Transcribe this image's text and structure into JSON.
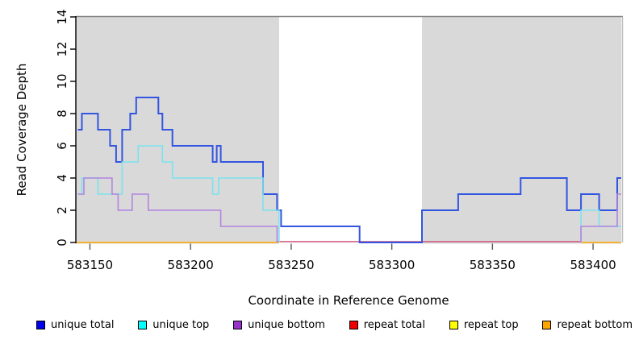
{
  "chart_data": {
    "type": "line",
    "subtype": "step-coverage",
    "xlabel": "Coordinate in Reference Genome",
    "ylabel": "Read Coverage Depth",
    "xlim": [
      583143,
      583414
    ],
    "ylim": [
      0,
      14
    ],
    "x_ticks": [
      583150,
      583200,
      583250,
      583300,
      583350,
      583400
    ],
    "y_ticks": [
      0,
      2,
      4,
      6,
      8,
      10,
      12,
      14
    ],
    "grid": false,
    "legend_position": "bottom",
    "panel_background_bands": [
      {
        "name": "shaded-region-left",
        "x0": 583143,
        "x1": 583244,
        "color": "#d9d9d9"
      },
      {
        "name": "shaded-region-right",
        "x0": 583315,
        "x1": 583414,
        "color": "#d9d9d9"
      }
    ],
    "series": [
      {
        "name": "unique total",
        "color": "#3355e0",
        "width": 2,
        "steps": [
          [
            583144,
            7
          ],
          [
            583146,
            8
          ],
          [
            583154,
            7
          ],
          [
            583160,
            6
          ],
          [
            583163,
            5
          ],
          [
            583166,
            7
          ],
          [
            583170,
            8
          ],
          [
            583173,
            9
          ],
          [
            583184,
            8
          ],
          [
            583186,
            7
          ],
          [
            583191,
            6
          ],
          [
            583211,
            5
          ],
          [
            583213,
            6
          ],
          [
            583215,
            5
          ],
          [
            583236,
            3
          ],
          [
            583243,
            2
          ],
          [
            583245,
            1
          ],
          [
            583284,
            0
          ],
          [
            583315,
            2
          ],
          [
            583333,
            3
          ],
          [
            583364,
            4
          ],
          [
            583387,
            2
          ],
          [
            583394,
            3
          ],
          [
            583403,
            2
          ],
          [
            583412,
            4
          ]
        ],
        "end": 583414
      },
      {
        "name": "unique top (left block)",
        "color": "#7be2ee",
        "width": 1.6,
        "steps": [
          [
            583144,
            3
          ],
          [
            583146,
            4
          ],
          [
            583154,
            3
          ],
          [
            583166,
            5
          ],
          [
            583174,
            6
          ],
          [
            583186,
            5
          ],
          [
            583191,
            4
          ],
          [
            583211,
            3
          ],
          [
            583214,
            4
          ],
          [
            583236,
            2
          ],
          [
            583244,
            0
          ]
        ],
        "end": 583244
      },
      {
        "name": "unique top (right block)",
        "color": "#7be2ee",
        "width": 1.6,
        "steps": [
          [
            583394,
            0
          ],
          [
            583394,
            2
          ],
          [
            583403,
            1
          ]
        ],
        "end": 583414
      },
      {
        "name": "unique bottom (left block)",
        "color": "#b384e0",
        "width": 1.6,
        "steps": [
          [
            583144,
            3
          ],
          [
            583147,
            4
          ],
          [
            583161,
            3
          ],
          [
            583164,
            2
          ],
          [
            583171,
            3
          ],
          [
            583179,
            2
          ],
          [
            583215,
            1
          ],
          [
            583243,
            0
          ]
        ],
        "end": 583243
      },
      {
        "name": "unique bottom (right block)",
        "color": "#b384e0",
        "width": 1.6,
        "steps": [
          [
            583394,
            0
          ],
          [
            583394,
            1
          ],
          [
            583412,
            3
          ]
        ],
        "end": 583414
      }
    ],
    "baseline_segments": [
      {
        "name": "repeat total visible at depth 0",
        "color": "#d0517b",
        "x0": 583243,
        "x1": 583394,
        "value": 0,
        "dy": -1
      },
      {
        "name": "repeat bottom visible at depth 0 (left)",
        "color": "#ffa500",
        "x0": 583143,
        "x1": 583244,
        "value": 0,
        "dy": 0
      },
      {
        "name": "repeat bottom visible at depth 0 (right)",
        "color": "#ffa500",
        "x0": 583394,
        "x1": 583414,
        "value": 0,
        "dy": 0
      }
    ],
    "legend": [
      {
        "label": "unique total",
        "color": "#0000ee"
      },
      {
        "label": "unique top",
        "color": "#00ffff"
      },
      {
        "label": "unique bottom",
        "color": "#9932cc"
      },
      {
        "label": "repeat total",
        "color": "#ee0000"
      },
      {
        "label": "repeat top",
        "color": "#ffff00"
      },
      {
        "label": "repeat bottom",
        "color": "#ffa500"
      }
    ]
  },
  "layout_colors": {
    "panel_band": "#d9d9d9",
    "top_border": "#848484",
    "axis": "#000000"
  }
}
